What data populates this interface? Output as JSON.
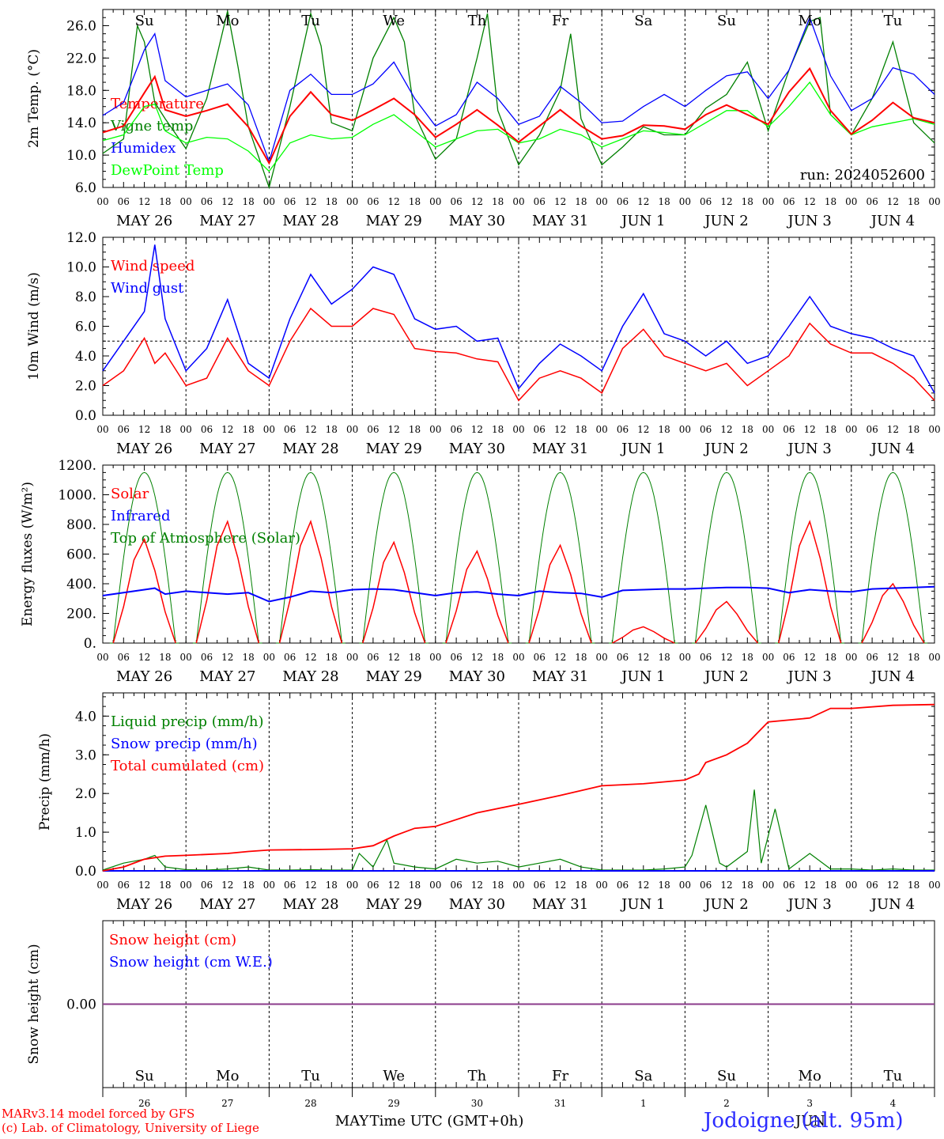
{
  "chart_data": [
    {
      "type": "line",
      "ylabel": "2m Temp. (°C)",
      "ylim": [
        6.0,
        28.0
      ],
      "yticks": [
        "6.0",
        "10.0",
        "14.0",
        "18.0",
        "22.0",
        "26.0"
      ],
      "run_label": "run: 2024052600",
      "series": [
        {
          "name": "Temperature",
          "color": "#ff0000",
          "x": [
            0,
            6,
            12,
            15,
            18,
            24,
            30,
            36,
            42,
            48,
            54,
            60,
            66,
            72,
            78,
            84,
            90,
            96,
            102,
            108,
            114,
            120,
            126,
            132,
            138,
            144,
            150,
            156,
            162,
            168,
            174,
            180,
            186,
            192,
            198,
            204,
            210,
            216,
            222,
            228,
            234,
            240
          ],
          "y": [
            12.8,
            13.6,
            17.7,
            19.7,
            15.6,
            14.8,
            15.5,
            16.3,
            13.5,
            9.0,
            14.8,
            17.8,
            15.0,
            14.3,
            15.6,
            17.0,
            15.0,
            12.2,
            13.8,
            15.6,
            13.7,
            11.6,
            13.6,
            15.6,
            13.6,
            12.0,
            12.4,
            13.7,
            13.6,
            13.2,
            15.0,
            16.2,
            15.0,
            13.8,
            17.8,
            20.7,
            15.5,
            12.6,
            14.3,
            16.5,
            14.6,
            14.0
          ]
        },
        {
          "name": "Vigne temp",
          "color": "#008000",
          "x": [
            0,
            6,
            10,
            12,
            15,
            18,
            24,
            30,
            36,
            39,
            42,
            48,
            54,
            60,
            63,
            66,
            72,
            78,
            84,
            87,
            90,
            96,
            102,
            108,
            111,
            114,
            120,
            126,
            132,
            135,
            138,
            144,
            150,
            156,
            162,
            168,
            174,
            180,
            186,
            192,
            198,
            204,
            207,
            210,
            216,
            222,
            228,
            234,
            240
          ],
          "y": [
            10.2,
            12.0,
            26.0,
            24.0,
            16.5,
            14.5,
            10.8,
            17.0,
            27.8,
            21.0,
            13.5,
            6.0,
            16.0,
            27.5,
            23.5,
            14.0,
            13.0,
            22.0,
            27.0,
            24.0,
            15.0,
            9.5,
            12.0,
            22.0,
            27.5,
            15.5,
            8.8,
            12.5,
            18.0,
            25.0,
            14.5,
            8.8,
            11.0,
            13.5,
            12.5,
            12.5,
            15.8,
            17.5,
            21.5,
            13.0,
            20.5,
            26.5,
            27.0,
            15.0,
            12.5,
            17.0,
            24.0,
            14.0,
            11.5
          ]
        },
        {
          "name": "Humidex",
          "color": "#0000ff",
          "x": [
            0,
            6,
            12,
            15,
            18,
            24,
            30,
            36,
            42,
            48,
            54,
            60,
            66,
            72,
            78,
            84,
            90,
            96,
            102,
            108,
            114,
            120,
            126,
            132,
            138,
            144,
            150,
            156,
            162,
            168,
            174,
            180,
            186,
            192,
            198,
            204,
            210,
            216,
            222,
            228,
            234,
            240
          ],
          "y": [
            14.9,
            16.5,
            23.0,
            25.0,
            19.2,
            17.2,
            18.0,
            18.8,
            16.2,
            9.2,
            18.0,
            20.0,
            17.5,
            17.5,
            18.8,
            21.5,
            17.0,
            13.6,
            15.0,
            19.0,
            17.0,
            13.8,
            14.8,
            18.5,
            16.5,
            14.0,
            14.2,
            16.0,
            17.5,
            16.0,
            18.0,
            19.8,
            20.3,
            17.0,
            20.5,
            27.0,
            19.8,
            15.5,
            17.0,
            20.8,
            20.0,
            17.5
          ]
        },
        {
          "name": "DewPoint Temp",
          "color": "#00ff00",
          "x": [
            0,
            6,
            12,
            15,
            18,
            24,
            30,
            36,
            42,
            48,
            54,
            60,
            66,
            72,
            78,
            84,
            90,
            96,
            102,
            108,
            114,
            120,
            126,
            132,
            138,
            144,
            150,
            156,
            162,
            168,
            174,
            180,
            186,
            192,
            198,
            204,
            210,
            216,
            222,
            228,
            234,
            240
          ],
          "y": [
            11.8,
            12.5,
            16.0,
            16.3,
            13.0,
            11.5,
            12.2,
            12.0,
            10.5,
            8.0,
            11.5,
            12.5,
            12.0,
            12.2,
            13.8,
            15.0,
            13.0,
            11.0,
            12.0,
            13.0,
            13.2,
            11.5,
            12.0,
            13.2,
            12.5,
            11.0,
            12.0,
            13.0,
            12.8,
            12.5,
            14.0,
            15.5,
            15.5,
            13.5,
            16.0,
            19.0,
            15.0,
            12.5,
            13.5,
            14.0,
            14.5,
            13.8
          ]
        }
      ]
    },
    {
      "type": "line",
      "ylabel": "10m Wind (m/s)",
      "ylim": [
        0.0,
        12.0
      ],
      "yticks": [
        "0.0",
        "2.0",
        "4.0",
        "6.0",
        "8.0",
        "10.0",
        "12.0"
      ],
      "reference_line": 5.0,
      "series": [
        {
          "name": "Wind speed",
          "color": "#ff0000",
          "x": [
            0,
            6,
            12,
            15,
            18,
            24,
            30,
            36,
            42,
            48,
            54,
            60,
            66,
            72,
            78,
            84,
            90,
            96,
            102,
            108,
            114,
            120,
            126,
            132,
            138,
            144,
            150,
            156,
            162,
            168,
            174,
            180,
            186,
            192,
            198,
            204,
            210,
            216,
            222,
            228,
            234,
            240
          ],
          "y": [
            2.0,
            3.0,
            5.2,
            3.5,
            4.2,
            2.0,
            2.5,
            5.2,
            3.0,
            2.0,
            5.0,
            7.2,
            6.0,
            6.0,
            7.2,
            6.8,
            4.5,
            4.3,
            4.2,
            3.8,
            3.6,
            1.0,
            2.5,
            3.0,
            2.5,
            1.5,
            4.5,
            5.8,
            4.0,
            3.5,
            3.0,
            3.5,
            2.0,
            3.0,
            4.0,
            6.2,
            4.8,
            4.2,
            4.2,
            3.5,
            2.5,
            1.0
          ]
        },
        {
          "name": "Wind gust",
          "color": "#0000ff",
          "x": [
            0,
            6,
            12,
            15,
            18,
            24,
            30,
            36,
            42,
            48,
            54,
            60,
            66,
            72,
            78,
            84,
            90,
            96,
            102,
            108,
            114,
            120,
            126,
            132,
            138,
            144,
            150,
            156,
            162,
            168,
            174,
            180,
            186,
            192,
            198,
            204,
            210,
            216,
            222,
            228,
            234,
            240
          ],
          "y": [
            3.0,
            5.0,
            7.0,
            11.5,
            6.5,
            3.0,
            4.5,
            7.8,
            3.5,
            2.5,
            6.5,
            9.5,
            7.5,
            8.5,
            10.0,
            9.5,
            6.5,
            5.8,
            6.0,
            5.0,
            5.2,
            1.8,
            3.5,
            4.8,
            4.0,
            3.0,
            6.0,
            8.2,
            5.5,
            5.0,
            4.0,
            5.0,
            3.5,
            4.0,
            6.0,
            8.0,
            6.0,
            5.5,
            5.2,
            4.5,
            4.0,
            1.5
          ]
        }
      ]
    },
    {
      "type": "line",
      "ylabel": "Energy fluxes (W/m²)",
      "ylim": [
        0,
        1200
      ],
      "yticks": [
        "0.",
        "200.",
        "400.",
        "600.",
        "800.",
        "1000.",
        "1200."
      ],
      "series": [
        {
          "name": "Solar",
          "color": "#ff0000",
          "peaks": [
            [
              12,
              700
            ],
            [
              36,
              820
            ],
            [
              60,
              820
            ],
            [
              84,
              680
            ],
            [
              108,
              620
            ],
            [
              132,
              660
            ],
            [
              156,
              110
            ],
            [
              180,
              280
            ],
            [
              204,
              820
            ],
            [
              228,
              400
            ]
          ]
        },
        {
          "name": "Infrared",
          "color": "#0000ff",
          "x": [
            0,
            6,
            12,
            15,
            18,
            24,
            30,
            36,
            42,
            48,
            54,
            60,
            66,
            72,
            78,
            84,
            90,
            96,
            102,
            108,
            114,
            120,
            126,
            132,
            138,
            144,
            150,
            156,
            162,
            168,
            174,
            180,
            186,
            192,
            198,
            204,
            210,
            216,
            222,
            228,
            234,
            240
          ],
          "y": [
            320,
            340,
            360,
            370,
            330,
            350,
            340,
            330,
            340,
            280,
            310,
            350,
            340,
            360,
            365,
            360,
            340,
            320,
            340,
            345,
            330,
            320,
            350,
            340,
            335,
            310,
            355,
            360,
            365,
            365,
            370,
            375,
            375,
            370,
            340,
            360,
            350,
            345,
            365,
            370,
            375,
            380
          ]
        },
        {
          "name": "Top of Atmosphere (Solar)",
          "color": "#008000",
          "daily_peak": 1150
        }
      ]
    },
    {
      "type": "line",
      "ylabel": "Precip (mm/h)",
      "ylim": [
        0.0,
        4.6
      ],
      "yticks": [
        "0.0",
        "1.0",
        "2.0",
        "3.0",
        "4.0"
      ],
      "series": [
        {
          "name": "Liquid precip (mm/h)",
          "color": "#008000",
          "x": [
            0,
            6,
            12,
            15,
            18,
            24,
            30,
            36,
            42,
            48,
            54,
            60,
            66,
            72,
            74,
            78,
            82,
            84,
            90,
            96,
            102,
            108,
            114,
            120,
            126,
            132,
            138,
            144,
            150,
            156,
            162,
            168,
            170,
            174,
            178,
            180,
            186,
            188,
            190,
            194,
            198,
            204,
            210,
            216,
            222,
            228,
            234,
            240
          ],
          "y": [
            0.02,
            0.2,
            0.3,
            0.4,
            0.1,
            0.03,
            0.02,
            0.05,
            0.1,
            0.02,
            0.02,
            0.03,
            0.02,
            0.02,
            0.45,
            0.1,
            0.8,
            0.2,
            0.1,
            0.05,
            0.3,
            0.2,
            0.25,
            0.1,
            0.2,
            0.3,
            0.1,
            0.02,
            0.02,
            0.02,
            0.05,
            0.1,
            0.4,
            1.7,
            0.2,
            0.1,
            0.5,
            2.1,
            0.2,
            1.6,
            0.05,
            0.45,
            0.05,
            0.05,
            0.02,
            0.05,
            0.02,
            0.02
          ]
        },
        {
          "name": "Snow precip (mm/h)",
          "color": "#0000ff",
          "x": [
            0,
            240
          ],
          "y": [
            0.0,
            0.0
          ]
        },
        {
          "name": "Total cumulated (cm)",
          "color": "#ff0000",
          "x": [
            0,
            6,
            12,
            18,
            24,
            36,
            42,
            48,
            60,
            72,
            78,
            84,
            90,
            96,
            108,
            120,
            132,
            144,
            156,
            168,
            172,
            174,
            180,
            186,
            192,
            204,
            210,
            216,
            228,
            240
          ],
          "y": [
            0.0,
            0.1,
            0.3,
            0.38,
            0.4,
            0.45,
            0.5,
            0.54,
            0.55,
            0.57,
            0.65,
            0.9,
            1.1,
            1.15,
            1.5,
            1.72,
            1.95,
            2.2,
            2.25,
            2.35,
            2.5,
            2.8,
            3.0,
            3.3,
            3.85,
            3.95,
            4.2,
            4.2,
            4.28,
            4.3
          ]
        }
      ]
    },
    {
      "type": "line",
      "ylabel": "Snow height (cm)",
      "yticks": [
        "0.00"
      ],
      "series": [
        {
          "name": "Snow height (cm)",
          "color": "#ff0000",
          "x": [
            0,
            240
          ],
          "y": [
            0.0,
            0.0
          ]
        },
        {
          "name": "Snow height (cm W.E.)",
          "color": "#0000ff",
          "x": [
            0,
            240
          ],
          "y": [
            0.0,
            0.0
          ]
        }
      ]
    }
  ],
  "time_axis": {
    "hour_ticks": [
      "00",
      "06",
      "12",
      "18"
    ],
    "hour_end": "00",
    "dates": [
      "MAY 26",
      "MAY 27",
      "MAY 28",
      "MAY 29",
      "MAY 30",
      "MAY 31",
      "JUN  1",
      "JUN  2",
      "JUN  3",
      "JUN  4"
    ],
    "weekdays": [
      "Su",
      "Mo",
      "Tu",
      "We",
      "Th",
      "Fr",
      "Sa",
      "Su",
      "Mo",
      "Tu"
    ],
    "weekday_colors": [
      "#ff0000",
      "#000000",
      "#000000",
      "#000000",
      "#000000",
      "#000000",
      "#ff0000",
      "#ff0000",
      "#000000",
      "#000000"
    ],
    "day_numbers": [
      "26",
      "27",
      "28",
      "29",
      "30",
      "31",
      "1",
      "2",
      "3",
      "4"
    ],
    "month_may": "MAY",
    "month_jun": "JUN",
    "xlabel": "Time UTC (GMT+0h)"
  },
  "footer": {
    "model_line": "MARv3.14 model forced by GFS",
    "credit_line": "(c) Lab. of Climatology, University of Liege",
    "station": "Jodoigne (alt. 95m)"
  }
}
